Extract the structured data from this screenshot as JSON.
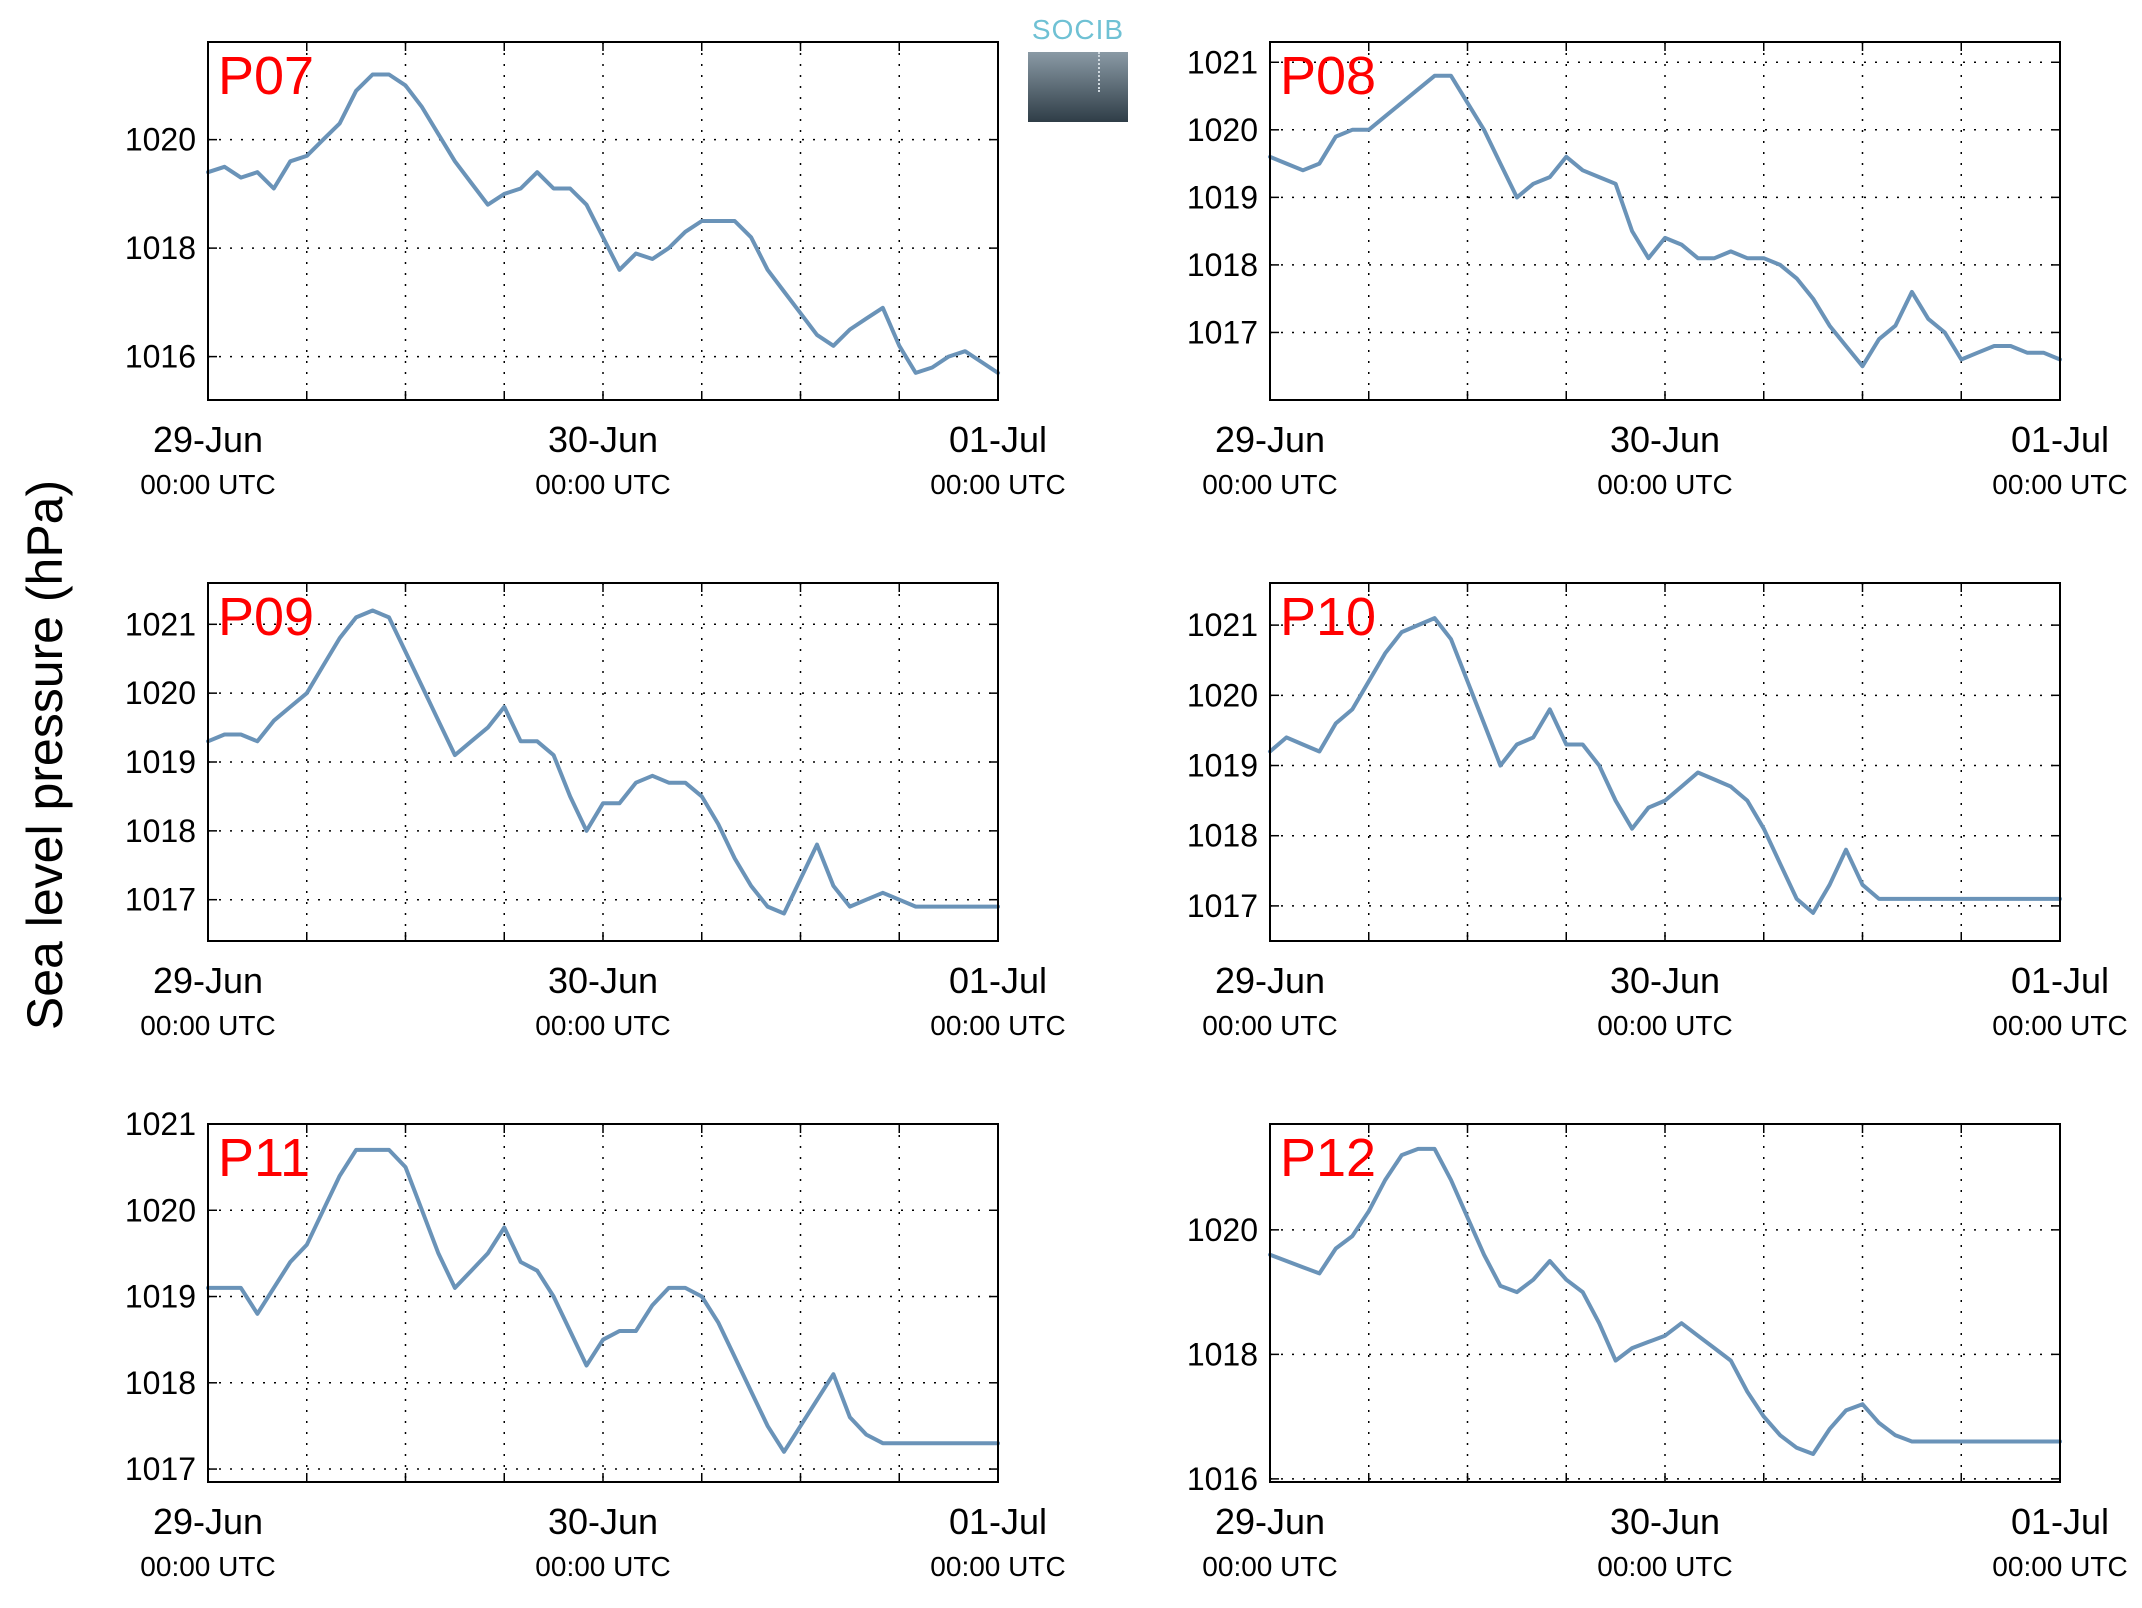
{
  "figure": {
    "ylabel": "Sea level pressure (hPa)",
    "logo_text": "SOCIB",
    "colors": {
      "line": "#6a93b8",
      "panel_label": "#ff0000",
      "axes": "#000000",
      "grid": "#000000"
    }
  },
  "chart_data": [
    {
      "type": "line",
      "title": "P07",
      "xlim": [
        0,
        48
      ],
      "ylim": [
        1015.2,
        1021.8
      ],
      "xticks": [
        0,
        6,
        12,
        18,
        24,
        30,
        36,
        42,
        48
      ],
      "xticklabels": [
        {
          "x": 0,
          "line1": "29-Jun",
          "line2": "00:00 UTC"
        },
        {
          "x": 24,
          "line1": "30-Jun",
          "line2": "00:00 UTC"
        },
        {
          "x": 48,
          "line1": "01-Jul",
          "line2": "00:00 UTC"
        }
      ],
      "yticks": [
        1016,
        1018,
        1020
      ],
      "series": [
        {
          "x": [
            0,
            1,
            2,
            3,
            4,
            5,
            6,
            7,
            8,
            9,
            10,
            11,
            12,
            13,
            14,
            15,
            16,
            17,
            18,
            19,
            20,
            21,
            22,
            23,
            24,
            25,
            26,
            27,
            28,
            29,
            30,
            31,
            32,
            33,
            34,
            35,
            36,
            37,
            38,
            39,
            40,
            41,
            42,
            43,
            44,
            45,
            46,
            47,
            48
          ],
          "values": [
            1019.4,
            1019.5,
            1019.3,
            1019.4,
            1019.1,
            1019.6,
            1019.7,
            1020.0,
            1020.3,
            1020.9,
            1021.2,
            1021.2,
            1021.0,
            1020.6,
            1020.1,
            1019.6,
            1019.2,
            1018.8,
            1019.0,
            1019.1,
            1019.4,
            1019.1,
            1019.1,
            1018.8,
            1018.2,
            1017.6,
            1017.9,
            1017.8,
            1018.0,
            1018.3,
            1018.5,
            1018.5,
            1018.5,
            1018.2,
            1017.6,
            1017.2,
            1016.8,
            1016.4,
            1016.2,
            1016.5,
            1016.7,
            1016.9,
            1016.2,
            1015.7,
            1015.8,
            1016.0,
            1016.1,
            1015.9,
            1015.7
          ]
        }
      ]
    },
    {
      "type": "line",
      "title": "P08",
      "xlim": [
        0,
        48
      ],
      "ylim": [
        1016.0,
        1021.3
      ],
      "xticks": [
        0,
        6,
        12,
        18,
        24,
        30,
        36,
        42,
        48
      ],
      "xticklabels": [
        {
          "x": 0,
          "line1": "29-Jun",
          "line2": "00:00 UTC"
        },
        {
          "x": 24,
          "line1": "30-Jun",
          "line2": "00:00 UTC"
        },
        {
          "x": 48,
          "line1": "01-Jul",
          "line2": "00:00 UTC"
        }
      ],
      "yticks": [
        1017,
        1018,
        1019,
        1020,
        1021
      ],
      "series": [
        {
          "x": [
            0,
            1,
            2,
            3,
            4,
            5,
            6,
            7,
            8,
            9,
            10,
            11,
            12,
            13,
            14,
            15,
            16,
            17,
            18,
            19,
            20,
            21,
            22,
            23,
            24,
            25,
            26,
            27,
            28,
            29,
            30,
            31,
            32,
            33,
            34,
            35,
            36,
            37,
            38,
            39,
            40,
            41,
            42,
            43,
            44,
            45,
            46,
            47,
            48
          ],
          "values": [
            1019.6,
            1019.5,
            1019.4,
            1019.5,
            1019.9,
            1020.0,
            1020.0,
            1020.2,
            1020.4,
            1020.6,
            1020.8,
            1020.8,
            1020.4,
            1020.0,
            1019.5,
            1019.0,
            1019.2,
            1019.3,
            1019.6,
            1019.4,
            1019.3,
            1019.2,
            1018.5,
            1018.1,
            1018.4,
            1018.3,
            1018.1,
            1018.1,
            1018.2,
            1018.1,
            1018.1,
            1018.0,
            1017.8,
            1017.5,
            1017.1,
            1016.8,
            1016.5,
            1016.9,
            1017.1,
            1017.6,
            1017.2,
            1017.0,
            1016.6,
            1016.7,
            1016.8,
            1016.8,
            1016.7,
            1016.7,
            1016.6
          ]
        }
      ]
    },
    {
      "type": "line",
      "title": "P09",
      "xlim": [
        0,
        48
      ],
      "ylim": [
        1016.4,
        1021.6
      ],
      "xticks": [
        0,
        6,
        12,
        18,
        24,
        30,
        36,
        42,
        48
      ],
      "xticklabels": [
        {
          "x": 0,
          "line1": "29-Jun",
          "line2": "00:00 UTC"
        },
        {
          "x": 24,
          "line1": "30-Jun",
          "line2": "00:00 UTC"
        },
        {
          "x": 48,
          "line1": "01-Jul",
          "line2": "00:00 UTC"
        }
      ],
      "yticks": [
        1017,
        1018,
        1019,
        1020,
        1021
      ],
      "series": [
        {
          "x": [
            0,
            1,
            2,
            3,
            4,
            5,
            6,
            7,
            8,
            9,
            10,
            11,
            12,
            13,
            14,
            15,
            16,
            17,
            18,
            19,
            20,
            21,
            22,
            23,
            24,
            25,
            26,
            27,
            28,
            29,
            30,
            31,
            32,
            33,
            34,
            35,
            36,
            37,
            38,
            39,
            40,
            41,
            42,
            43,
            44,
            45,
            46,
            47,
            48
          ],
          "values": [
            1019.3,
            1019.4,
            1019.4,
            1019.3,
            1019.6,
            1019.8,
            1020.0,
            1020.4,
            1020.8,
            1021.1,
            1021.2,
            1021.1,
            1020.6,
            1020.1,
            1019.6,
            1019.1,
            1019.3,
            1019.5,
            1019.8,
            1019.3,
            1019.3,
            1019.1,
            1018.5,
            1018.0,
            1018.4,
            1018.4,
            1018.7,
            1018.8,
            1018.7,
            1018.7,
            1018.5,
            1018.1,
            1017.6,
            1017.2,
            1016.9,
            1016.8,
            1017.3,
            1017.8,
            1017.2,
            1016.9,
            1017.0,
            1017.1,
            1017.0,
            1016.9,
            1016.9,
            1016.9,
            1016.9,
            1016.9,
            1016.9
          ]
        }
      ]
    },
    {
      "type": "line",
      "title": "P10",
      "xlim": [
        0,
        48
      ],
      "ylim": [
        1016.5,
        1021.6
      ],
      "xticks": [
        0,
        6,
        12,
        18,
        24,
        30,
        36,
        42,
        48
      ],
      "xticklabels": [
        {
          "x": 0,
          "line1": "29-Jun",
          "line2": "00:00 UTC"
        },
        {
          "x": 24,
          "line1": "30-Jun",
          "line2": "00:00 UTC"
        },
        {
          "x": 48,
          "line1": "01-Jul",
          "line2": "00:00 UTC"
        }
      ],
      "yticks": [
        1017,
        1018,
        1019,
        1020,
        1021
      ],
      "series": [
        {
          "x": [
            0,
            1,
            2,
            3,
            4,
            5,
            6,
            7,
            8,
            9,
            10,
            11,
            12,
            13,
            14,
            15,
            16,
            17,
            18,
            19,
            20,
            21,
            22,
            23,
            24,
            25,
            26,
            27,
            28,
            29,
            30,
            31,
            32,
            33,
            34,
            35,
            36,
            37,
            38,
            39,
            40,
            41,
            42,
            43,
            44,
            45,
            46,
            47,
            48
          ],
          "values": [
            1019.2,
            1019.4,
            1019.3,
            1019.2,
            1019.6,
            1019.8,
            1020.2,
            1020.6,
            1020.9,
            1021.0,
            1021.1,
            1020.8,
            1020.2,
            1019.6,
            1019.0,
            1019.3,
            1019.4,
            1019.8,
            1019.3,
            1019.3,
            1019.0,
            1018.5,
            1018.1,
            1018.4,
            1018.5,
            1018.7,
            1018.9,
            1018.8,
            1018.7,
            1018.5,
            1018.1,
            1017.6,
            1017.1,
            1016.9,
            1017.3,
            1017.8,
            1017.3,
            1017.1,
            1017.1,
            1017.1,
            1017.1,
            1017.1,
            1017.1,
            1017.1,
            1017.1,
            1017.1,
            1017.1,
            1017.1,
            1017.1
          ]
        }
      ]
    },
    {
      "type": "line",
      "title": "P11",
      "xlim": [
        0,
        48
      ],
      "ylim": [
        1016.85,
        1021.0
      ],
      "xticks": [
        0,
        6,
        12,
        18,
        24,
        30,
        36,
        42,
        48
      ],
      "xticklabels": [
        {
          "x": 0,
          "line1": "29-Jun",
          "line2": "00:00 UTC"
        },
        {
          "x": 24,
          "line1": "30-Jun",
          "line2": "00:00 UTC"
        },
        {
          "x": 48,
          "line1": "01-Jul",
          "line2": "00:00 UTC"
        }
      ],
      "yticks": [
        1017,
        1018,
        1019,
        1020,
        1021
      ],
      "series": [
        {
          "x": [
            0,
            1,
            2,
            3,
            4,
            5,
            6,
            7,
            8,
            9,
            10,
            11,
            12,
            13,
            14,
            15,
            16,
            17,
            18,
            19,
            20,
            21,
            22,
            23,
            24,
            25,
            26,
            27,
            28,
            29,
            30,
            31,
            32,
            33,
            34,
            35,
            36,
            37,
            38,
            39,
            40,
            41,
            42,
            43,
            44,
            45,
            46,
            47,
            48
          ],
          "values": [
            1019.1,
            1019.1,
            1019.1,
            1018.8,
            1019.1,
            1019.4,
            1019.6,
            1020.0,
            1020.4,
            1020.7,
            1020.7,
            1020.7,
            1020.5,
            1020.0,
            1019.5,
            1019.1,
            1019.3,
            1019.5,
            1019.8,
            1019.4,
            1019.3,
            1019.0,
            1018.6,
            1018.2,
            1018.5,
            1018.6,
            1018.6,
            1018.9,
            1019.1,
            1019.1,
            1019.0,
            1018.7,
            1018.3,
            1017.9,
            1017.5,
            1017.2,
            1017.5,
            1017.8,
            1018.1,
            1017.6,
            1017.4,
            1017.3,
            1017.3,
            1017.3,
            1017.3,
            1017.3,
            1017.3,
            1017.3,
            1017.3
          ]
        }
      ]
    },
    {
      "type": "line",
      "title": "P12",
      "xlim": [
        0,
        48
      ],
      "ylim": [
        1015.95,
        1021.7
      ],
      "xticks": [
        0,
        6,
        12,
        18,
        24,
        30,
        36,
        42,
        48
      ],
      "xticklabels": [
        {
          "x": 0,
          "line1": "29-Jun",
          "line2": "00:00 UTC"
        },
        {
          "x": 24,
          "line1": "30-Jun",
          "line2": "00:00 UTC"
        },
        {
          "x": 48,
          "line1": "01-Jul",
          "line2": "00:00 UTC"
        }
      ],
      "yticks": [
        1016,
        1018,
        1020
      ],
      "series": [
        {
          "x": [
            0,
            1,
            2,
            3,
            4,
            5,
            6,
            7,
            8,
            9,
            10,
            11,
            12,
            13,
            14,
            15,
            16,
            17,
            18,
            19,
            20,
            21,
            22,
            23,
            24,
            25,
            26,
            27,
            28,
            29,
            30,
            31,
            32,
            33,
            34,
            35,
            36,
            37,
            38,
            39,
            40,
            41,
            42,
            43,
            44,
            45,
            46,
            47,
            48
          ],
          "values": [
            1019.6,
            1019.5,
            1019.4,
            1019.3,
            1019.7,
            1019.9,
            1020.3,
            1020.8,
            1021.2,
            1021.3,
            1021.3,
            1020.8,
            1020.2,
            1019.6,
            1019.1,
            1019.0,
            1019.2,
            1019.5,
            1019.2,
            1019.0,
            1018.5,
            1017.9,
            1018.1,
            1018.2,
            1018.3,
            1018.5,
            1018.3,
            1018.1,
            1017.9,
            1017.4,
            1017.0,
            1016.7,
            1016.5,
            1016.4,
            1016.8,
            1017.1,
            1017.2,
            1016.9,
            1016.7,
            1016.6,
            1016.6,
            1016.6,
            1016.6,
            1016.6,
            1016.6,
            1016.6,
            1016.6,
            1016.6,
            1016.6
          ]
        }
      ]
    }
  ]
}
